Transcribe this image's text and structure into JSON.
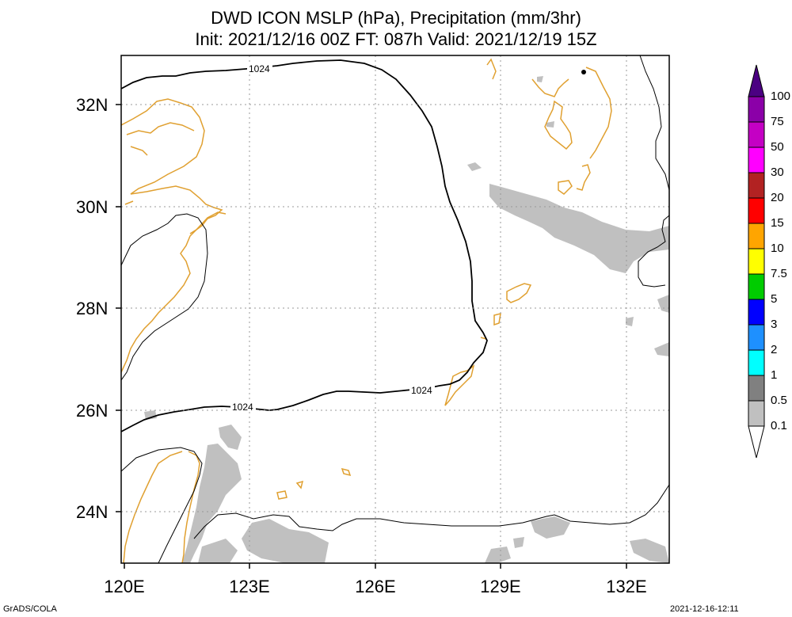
{
  "title": {
    "line1": "DWD ICON MSLP (hPa), Precipitation (mm/3hr)",
    "line2": "Init: 2021/12/16 00Z  FT: 087h  Valid: 2021/12/19 15Z"
  },
  "axes": {
    "lat_labels": [
      "32N",
      "30N",
      "28N",
      "26N",
      "24N"
    ],
    "lon_labels": [
      "120E",
      "123E",
      "126E",
      "129E",
      "132E"
    ]
  },
  "contours": {
    "isobar_label": "1024"
  },
  "colorbar": {
    "labels": [
      "100",
      "75",
      "50",
      "30",
      "20",
      "15",
      "10",
      "7.5",
      "5",
      "3",
      "2",
      "1",
      "0.5",
      "0.1"
    ],
    "colors": [
      "#4b0082",
      "#8b00a8",
      "#c400c4",
      "#ff00ff",
      "#b22222",
      "#ff0000",
      "#ffa500",
      "#ffff00",
      "#00cc00",
      "#0000ff",
      "#1e90ff",
      "#00ffff",
      "#808080",
      "#c0c0c0"
    ]
  },
  "footer": {
    "left": "GrADS/COLA",
    "right": "2021-12-16-12:11"
  },
  "colors": {
    "coastline": "#e0a030",
    "isobar": "#000000",
    "precip_light": "#c0c0c0",
    "grid": "#999999"
  }
}
